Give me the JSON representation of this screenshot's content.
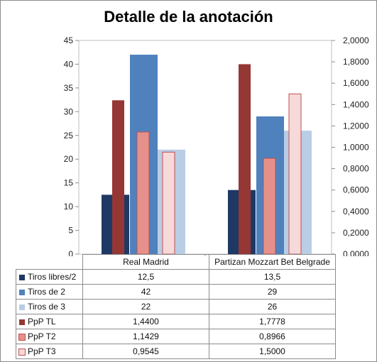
{
  "chart_data": {
    "type": "bar",
    "title": "Detalle de la anotación",
    "categories": [
      "Real Madrid",
      "Partizan Mozzart Bet Belgrade"
    ],
    "y_left": {
      "ylim": [
        0,
        45
      ],
      "ticks": [
        "0",
        "5",
        "10",
        "15",
        "20",
        "25",
        "30",
        "35",
        "40",
        "45"
      ]
    },
    "y_right": {
      "ylim": [
        0,
        2.0
      ],
      "ticks": [
        "0,0000",
        "0,2000",
        "0,4000",
        "0,6000",
        "0,8000",
        "1,0000",
        "1,2000",
        "1,4000",
        "1,6000",
        "1,8000",
        "2,0000"
      ]
    },
    "series": [
      {
        "name": "Tiros libres/2",
        "axis": "left",
        "color": "#1f3864",
        "values": [
          12.5,
          13.5
        ],
        "labels": [
          "12,5",
          "13,5"
        ]
      },
      {
        "name": "Tiros de 2",
        "axis": "left",
        "color": "#4f81bd",
        "values": [
          42,
          29
        ],
        "labels": [
          "42",
          "29"
        ]
      },
      {
        "name": "Tiros de 3",
        "axis": "left",
        "color": "#b9cde5",
        "values": [
          22,
          26
        ],
        "labels": [
          "22",
          "26"
        ]
      },
      {
        "name": "PpP TL",
        "axis": "right",
        "color": "#953735",
        "values": [
          1.44,
          1.7778
        ],
        "labels": [
          "1,4400",
          "1,7778"
        ]
      },
      {
        "name": "PpP T2",
        "axis": "right",
        "color": "#e6908c",
        "values": [
          1.1429,
          0.8966
        ],
        "labels": [
          "1,1429",
          "0,8966"
        ]
      },
      {
        "name": "PpP T3",
        "axis": "right",
        "color": "#f6d9d9",
        "values": [
          0.9545,
          1.5
        ],
        "labels": [
          "0,9545",
          "1,5000"
        ]
      }
    ],
    "legend": "data-table",
    "grid": false
  }
}
